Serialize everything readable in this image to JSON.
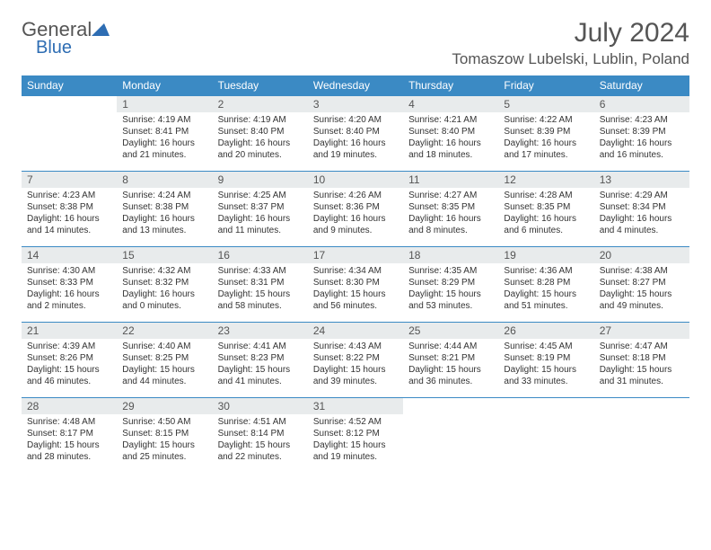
{
  "logo": {
    "gray": "General",
    "blue": "Blue"
  },
  "title": "July 2024",
  "location": "Tomaszow Lubelski, Lublin, Poland",
  "colors": {
    "header_bg": "#3b8ac4",
    "header_text": "#ffffff",
    "daynum_bg": "#e8ebec",
    "text": "#333333",
    "title_color": "#555555",
    "row_border": "#3b8ac4"
  },
  "weekdays": [
    "Sunday",
    "Monday",
    "Tuesday",
    "Wednesday",
    "Thursday",
    "Friday",
    "Saturday"
  ],
  "weeks": [
    [
      null,
      {
        "n": "1",
        "sr": "4:19 AM",
        "ss": "8:41 PM",
        "dl": "16 hours and 21 minutes."
      },
      {
        "n": "2",
        "sr": "4:19 AM",
        "ss": "8:40 PM",
        "dl": "16 hours and 20 minutes."
      },
      {
        "n": "3",
        "sr": "4:20 AM",
        "ss": "8:40 PM",
        "dl": "16 hours and 19 minutes."
      },
      {
        "n": "4",
        "sr": "4:21 AM",
        "ss": "8:40 PM",
        "dl": "16 hours and 18 minutes."
      },
      {
        "n": "5",
        "sr": "4:22 AM",
        "ss": "8:39 PM",
        "dl": "16 hours and 17 minutes."
      },
      {
        "n": "6",
        "sr": "4:23 AM",
        "ss": "8:39 PM",
        "dl": "16 hours and 16 minutes."
      }
    ],
    [
      {
        "n": "7",
        "sr": "4:23 AM",
        "ss": "8:38 PM",
        "dl": "16 hours and 14 minutes."
      },
      {
        "n": "8",
        "sr": "4:24 AM",
        "ss": "8:38 PM",
        "dl": "16 hours and 13 minutes."
      },
      {
        "n": "9",
        "sr": "4:25 AM",
        "ss": "8:37 PM",
        "dl": "16 hours and 11 minutes."
      },
      {
        "n": "10",
        "sr": "4:26 AM",
        "ss": "8:36 PM",
        "dl": "16 hours and 9 minutes."
      },
      {
        "n": "11",
        "sr": "4:27 AM",
        "ss": "8:35 PM",
        "dl": "16 hours and 8 minutes."
      },
      {
        "n": "12",
        "sr": "4:28 AM",
        "ss": "8:35 PM",
        "dl": "16 hours and 6 minutes."
      },
      {
        "n": "13",
        "sr": "4:29 AM",
        "ss": "8:34 PM",
        "dl": "16 hours and 4 minutes."
      }
    ],
    [
      {
        "n": "14",
        "sr": "4:30 AM",
        "ss": "8:33 PM",
        "dl": "16 hours and 2 minutes."
      },
      {
        "n": "15",
        "sr": "4:32 AM",
        "ss": "8:32 PM",
        "dl": "16 hours and 0 minutes."
      },
      {
        "n": "16",
        "sr": "4:33 AM",
        "ss": "8:31 PM",
        "dl": "15 hours and 58 minutes."
      },
      {
        "n": "17",
        "sr": "4:34 AM",
        "ss": "8:30 PM",
        "dl": "15 hours and 56 minutes."
      },
      {
        "n": "18",
        "sr": "4:35 AM",
        "ss": "8:29 PM",
        "dl": "15 hours and 53 minutes."
      },
      {
        "n": "19",
        "sr": "4:36 AM",
        "ss": "8:28 PM",
        "dl": "15 hours and 51 minutes."
      },
      {
        "n": "20",
        "sr": "4:38 AM",
        "ss": "8:27 PM",
        "dl": "15 hours and 49 minutes."
      }
    ],
    [
      {
        "n": "21",
        "sr": "4:39 AM",
        "ss": "8:26 PM",
        "dl": "15 hours and 46 minutes."
      },
      {
        "n": "22",
        "sr": "4:40 AM",
        "ss": "8:25 PM",
        "dl": "15 hours and 44 minutes."
      },
      {
        "n": "23",
        "sr": "4:41 AM",
        "ss": "8:23 PM",
        "dl": "15 hours and 41 minutes."
      },
      {
        "n": "24",
        "sr": "4:43 AM",
        "ss": "8:22 PM",
        "dl": "15 hours and 39 minutes."
      },
      {
        "n": "25",
        "sr": "4:44 AM",
        "ss": "8:21 PM",
        "dl": "15 hours and 36 minutes."
      },
      {
        "n": "26",
        "sr": "4:45 AM",
        "ss": "8:19 PM",
        "dl": "15 hours and 33 minutes."
      },
      {
        "n": "27",
        "sr": "4:47 AM",
        "ss": "8:18 PM",
        "dl": "15 hours and 31 minutes."
      }
    ],
    [
      {
        "n": "28",
        "sr": "4:48 AM",
        "ss": "8:17 PM",
        "dl": "15 hours and 28 minutes."
      },
      {
        "n": "29",
        "sr": "4:50 AM",
        "ss": "8:15 PM",
        "dl": "15 hours and 25 minutes."
      },
      {
        "n": "30",
        "sr": "4:51 AM",
        "ss": "8:14 PM",
        "dl": "15 hours and 22 minutes."
      },
      {
        "n": "31",
        "sr": "4:52 AM",
        "ss": "8:12 PM",
        "dl": "15 hours and 19 minutes."
      },
      null,
      null,
      null
    ]
  ],
  "labels": {
    "sunrise": "Sunrise:",
    "sunset": "Sunset:",
    "daylight": "Daylight:"
  }
}
